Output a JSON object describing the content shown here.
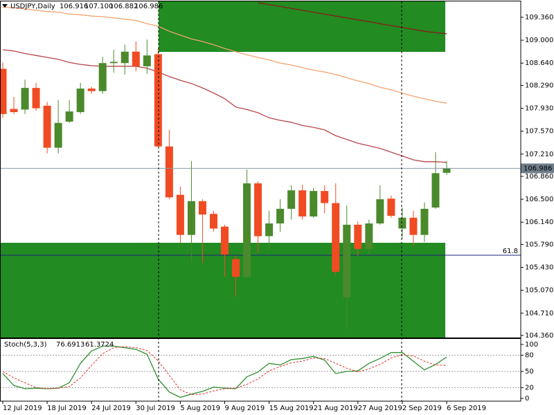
{
  "chart_data": [
    {
      "type": "candlestick",
      "title": "USDJPY,Daily",
      "title_values": [
        "106.916",
        "107.100",
        "106.882",
        "106.986"
      ],
      "categories": [
        "12 Jul 2019",
        null,
        null,
        null,
        "18 Jul 2019",
        null,
        null,
        null,
        "24 Jul 2019",
        null,
        null,
        null,
        "30 Jul 2019",
        null,
        null,
        null,
        "5 Aug 2019",
        null,
        null,
        null,
        "9 Aug 2019",
        null,
        null,
        null,
        "15 Aug 2019",
        null,
        null,
        null,
        "21 Aug 2019",
        null,
        null,
        null,
        "27 Aug 2019",
        null,
        null,
        null,
        "2 Sep 2019",
        null,
        null,
        null,
        "6 Sep 2019"
      ],
      "open": [
        108.55,
        107.92,
        107.91,
        108.25,
        107.97,
        107.31,
        107.72,
        107.87,
        108.24,
        108.2,
        108.64,
        108.64,
        108.82,
        108.59,
        108.78,
        107.33,
        106.57,
        105.94,
        106.47,
        106.27,
        106.07,
        105.56,
        105.28,
        106.75,
        105.92,
        106.12,
        106.35,
        106.64,
        106.23,
        106.63,
        106.44,
        104.96,
        106.1,
        105.72,
        106.12,
        106.51,
        106.04,
        106.21,
        105.94,
        106.37,
        106.916
      ],
      "high": [
        108.65,
        108.11,
        108.38,
        108.33,
        108.03,
        108.06,
        108.06,
        108.33,
        108.27,
        108.74,
        108.85,
        108.93,
        108.98,
        109.01,
        108.87,
        107.59,
        106.7,
        107.1,
        106.5,
        106.32,
        106.1,
        105.61,
        106.97,
        106.78,
        106.32,
        106.5,
        106.72,
        106.73,
        106.68,
        106.72,
        106.75,
        106.4,
        106.15,
        106.18,
        106.72,
        106.56,
        106.37,
        106.32,
        106.45,
        107.24,
        107.1
      ],
      "low": [
        107.78,
        107.84,
        107.84,
        107.89,
        107.22,
        107.22,
        107.7,
        107.84,
        108.16,
        108.16,
        108.49,
        108.46,
        108.51,
        108.47,
        107.32,
        106.5,
        105.81,
        105.52,
        105.5,
        105.99,
        105.28,
        104.97,
        105.26,
        105.66,
        105.7,
        105.99,
        106.18,
        106.18,
        106.21,
        106.28,
        105.31,
        104.44,
        105.61,
        105.63,
        106.1,
        106.21,
        105.88,
        105.77,
        105.83,
        106.35,
        106.882
      ],
      "close": [
        107.84,
        107.87,
        108.25,
        107.93,
        107.31,
        107.7,
        107.88,
        108.24,
        108.2,
        108.64,
        108.66,
        108.82,
        108.59,
        108.76,
        107.33,
        106.53,
        105.94,
        106.47,
        106.26,
        106.04,
        105.63,
        105.28,
        106.75,
        105.92,
        106.12,
        106.35,
        106.64,
        106.23,
        106.63,
        106.44,
        105.36,
        106.1,
        105.72,
        106.12,
        106.5,
        106.24,
        106.21,
        105.94,
        106.35,
        106.91,
        106.986
      ],
      "up_color": "#4a8a2c",
      "down_color": "#f04b23",
      "series": [
        {
          "color": "#8b1a1a",
          "values": [
            null,
            null,
            null,
            null,
            null,
            null,
            null,
            null,
            null,
            null,
            null,
            null,
            null,
            null,
            null,
            null,
            null,
            null,
            null,
            null,
            null,
            null,
            null,
            109.59,
            109.56,
            109.53,
            109.5,
            109.47,
            109.44,
            109.41,
            109.38,
            109.35,
            109.32,
            109.29,
            109.26,
            109.23,
            109.2,
            109.17,
            109.14,
            109.12,
            109.1
          ]
        },
        {
          "color": "#f4a26e",
          "values": [
            109.52,
            109.51,
            109.49,
            109.47,
            109.45,
            109.44,
            109.41,
            109.4,
            109.38,
            109.37,
            109.35,
            109.33,
            109.31,
            109.26,
            109.22,
            109.14,
            109.08,
            109.02,
            108.98,
            108.93,
            108.87,
            108.82,
            108.77,
            108.73,
            108.69,
            108.64,
            108.61,
            108.57,
            108.53,
            108.5,
            108.46,
            108.41,
            108.36,
            108.32,
            108.26,
            108.22,
            108.17,
            108.12,
            108.08,
            108.04,
            108.01
          ]
        },
        {
          "color": "#b8464a",
          "values": [
            108.85,
            108.83,
            108.79,
            108.76,
            108.73,
            108.7,
            108.65,
            108.62,
            108.6,
            108.59,
            108.59,
            108.59,
            108.59,
            108.56,
            108.5,
            108.43,
            108.37,
            108.32,
            108.25,
            108.17,
            108.08,
            107.95,
            107.91,
            107.86,
            107.78,
            107.74,
            107.71,
            107.66,
            107.63,
            107.59,
            107.5,
            107.44,
            107.38,
            107.34,
            107.3,
            107.24,
            107.18,
            107.12,
            107.09,
            107.09,
            107.08
          ]
        }
      ],
      "last_price": 106.986,
      "level_label": "61.8",
      "ylim": [
        104.327,
        109.61
      ],
      "yticks": [
        {
          "value": 109.36,
          "label": "109.360"
        },
        {
          "value": 109.0,
          "label": "109.000"
        },
        {
          "value": 108.64,
          "label": "108.640"
        },
        {
          "value": 108.29,
          "label": "108.290"
        },
        {
          "value": 107.93,
          "label": "107.930"
        },
        {
          "value": 107.57,
          "label": "107.570"
        },
        {
          "value": 107.21,
          "label": "107.210"
        },
        {
          "value": 106.86,
          "label": "106.860"
        },
        {
          "value": 106.5,
          "label": "106.500"
        },
        {
          "value": 106.14,
          "label": "106.140"
        },
        {
          "value": 105.79,
          "label": "105.790"
        },
        {
          "value": 105.43,
          "label": "105.430"
        },
        {
          "value": 105.07,
          "label": "105.070"
        },
        {
          "value": 104.71,
          "label": "104.710"
        },
        {
          "value": 104.36,
          "label": "104.360"
        }
      ]
    },
    {
      "type": "line",
      "title": "Stoch(5,3,3)",
      "series": [
        {
          "color": "#2f8f2f",
          "values": [
            46,
            24,
            18,
            19,
            18,
            19,
            29,
            65,
            88,
            97,
            97,
            94,
            91,
            82,
            36,
            12,
            2,
            8,
            13,
            21,
            19,
            18,
            40,
            49,
            65,
            62,
            72,
            74,
            78,
            71,
            46,
            50,
            51,
            65,
            74,
            85,
            85,
            69,
            53,
            63,
            76.6913
          ]
        },
        {
          "color": "#e0342c",
          "dashed": true,
          "values": [
            50,
            38,
            29,
            20,
            18,
            19,
            22,
            38,
            61,
            83,
            94,
            96,
            94,
            89,
            70,
            43,
            16,
            7,
            8,
            14,
            18,
            19,
            26,
            36,
            51,
            59,
            66,
            69,
            75,
            74,
            65,
            56,
            49,
            55,
            63,
            75,
            81,
            79,
            69,
            62,
            61.3724
          ]
        }
      ],
      "levels": [
        80,
        50,
        20
      ],
      "ylim": [
        -5.1,
        110.3
      ],
      "yticks": [
        100,
        80,
        50,
        20,
        0
      ]
    }
  ]
}
